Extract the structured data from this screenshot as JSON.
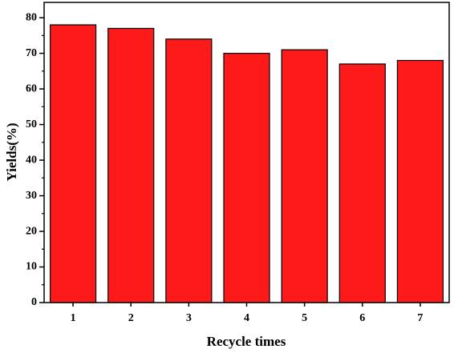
{
  "chart_data": {
    "type": "bar",
    "x_label": "Recycle times",
    "y_label": "Yields(%)",
    "categories": [
      "1",
      "2",
      "3",
      "4",
      "5",
      "6",
      "7"
    ],
    "values": [
      78,
      77,
      74,
      70,
      71,
      67,
      68
    ],
    "color": "#ff1a1a",
    "ylim": [
      0,
      84.3
    ],
    "yticks": [
      0,
      10,
      20,
      30,
      40,
      50,
      60,
      70,
      80
    ]
  }
}
